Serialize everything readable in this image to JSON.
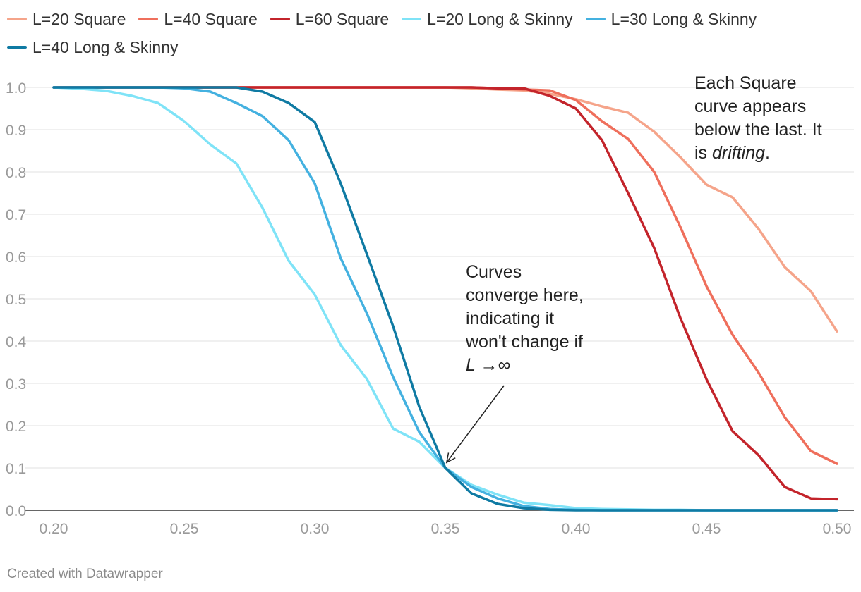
{
  "chart_data": {
    "type": "line",
    "xlim": [
      0.2,
      0.5
    ],
    "ylim": [
      0.0,
      1.0
    ],
    "x_ticks": [
      "0.20",
      "0.25",
      "0.30",
      "0.35",
      "0.40",
      "0.45",
      "0.50"
    ],
    "y_ticks": [
      "0.0",
      "0.1",
      "0.2",
      "0.3",
      "0.4",
      "0.5",
      "0.6",
      "0.7",
      "0.8",
      "0.9",
      "1.0"
    ],
    "grid": true,
    "legend_position": "top",
    "x": [
      0.2,
      0.21,
      0.22,
      0.23,
      0.24,
      0.25,
      0.26,
      0.27,
      0.28,
      0.29,
      0.3,
      0.31,
      0.32,
      0.33,
      0.34,
      0.35,
      0.36,
      0.37,
      0.38,
      0.39,
      0.4,
      0.41,
      0.42,
      0.43,
      0.44,
      0.45,
      0.46,
      0.47,
      0.48,
      0.49,
      0.5
    ],
    "series": [
      {
        "name": "L=20 Square",
        "color": "#f5a48a",
        "values": [
          1.0,
          1.0,
          1.0,
          1.0,
          1.0,
          1.0,
          1.0,
          1.0,
          1.0,
          1.0,
          1.0,
          1.0,
          1.0,
          1.0,
          1.0,
          1.0,
          0.998,
          0.995,
          0.993,
          0.985,
          0.972,
          0.955,
          0.94,
          0.895,
          0.835,
          0.77,
          0.74,
          0.665,
          0.575,
          0.518,
          0.423
        ]
      },
      {
        "name": "L=40 Square",
        "color": "#ef6f5c",
        "values": [
          1.0,
          1.0,
          1.0,
          1.0,
          1.0,
          1.0,
          1.0,
          1.0,
          1.0,
          1.0,
          1.0,
          1.0,
          1.0,
          1.0,
          1.0,
          1.0,
          1.0,
          0.998,
          0.995,
          0.993,
          0.97,
          0.92,
          0.878,
          0.8,
          0.67,
          0.53,
          0.415,
          0.325,
          0.22,
          0.14,
          0.11
        ]
      },
      {
        "name": "L=60 Square",
        "color": "#c3242b",
        "values": [
          1.0,
          1.0,
          1.0,
          1.0,
          1.0,
          1.0,
          1.0,
          1.0,
          1.0,
          1.0,
          1.0,
          1.0,
          1.0,
          1.0,
          1.0,
          1.0,
          1.0,
          0.998,
          0.998,
          0.98,
          0.95,
          0.875,
          0.75,
          0.62,
          0.455,
          0.31,
          0.187,
          0.13,
          0.055,
          0.028,
          0.026
        ]
      },
      {
        "name": "L=20 Long & Skinny",
        "color": "#7fe3f7",
        "values": [
          1.0,
          0.997,
          0.992,
          0.98,
          0.963,
          0.92,
          0.865,
          0.82,
          0.715,
          0.59,
          0.51,
          0.39,
          0.31,
          0.193,
          0.162,
          0.1,
          0.06,
          0.037,
          0.018,
          0.012,
          0.005,
          0.003,
          0.002,
          0.001,
          0.001,
          0.0,
          0.0,
          0.0,
          0.0,
          0.0,
          0.0
        ]
      },
      {
        "name": "L=30 Long & Skinny",
        "color": "#44b1e0",
        "values": [
          1.0,
          1.0,
          1.0,
          1.0,
          1.0,
          0.998,
          0.99,
          0.963,
          0.932,
          0.875,
          0.773,
          0.595,
          0.465,
          0.315,
          0.185,
          0.1,
          0.055,
          0.028,
          0.01,
          0.003,
          0.001,
          0.0,
          0.0,
          0.0,
          0.0,
          0.0,
          0.0,
          0.0,
          0.0,
          0.0,
          0.0
        ]
      },
      {
        "name": "L=40 Long & Skinny",
        "color": "#0f7aa3",
        "values": [
          1.0,
          1.0,
          1.0,
          1.0,
          1.0,
          1.0,
          1.0,
          1.0,
          0.99,
          0.963,
          0.918,
          0.772,
          0.605,
          0.435,
          0.245,
          0.1,
          0.04,
          0.015,
          0.005,
          0.001,
          0.0,
          0.0,
          0.0,
          0.0,
          0.0,
          0.0,
          0.0,
          0.0,
          0.0,
          0.0,
          0.0
        ]
      }
    ],
    "annotations": {
      "square_note": {
        "lines": [
          "Each Square",
          "curve appears",
          "below the last. It",
          "is "
        ],
        "emphasis": "drifting",
        "suffix": "."
      },
      "converge_note": {
        "lines": [
          "Curves",
          "converge here,",
          "indicating it",
          "won't change if"
        ],
        "math": "L →∞",
        "arrow_from": [
          0.3725,
          0.295
        ],
        "arrow_to": [
          0.3505,
          0.113
        ]
      }
    }
  },
  "footer": "Created with Datawrapper"
}
